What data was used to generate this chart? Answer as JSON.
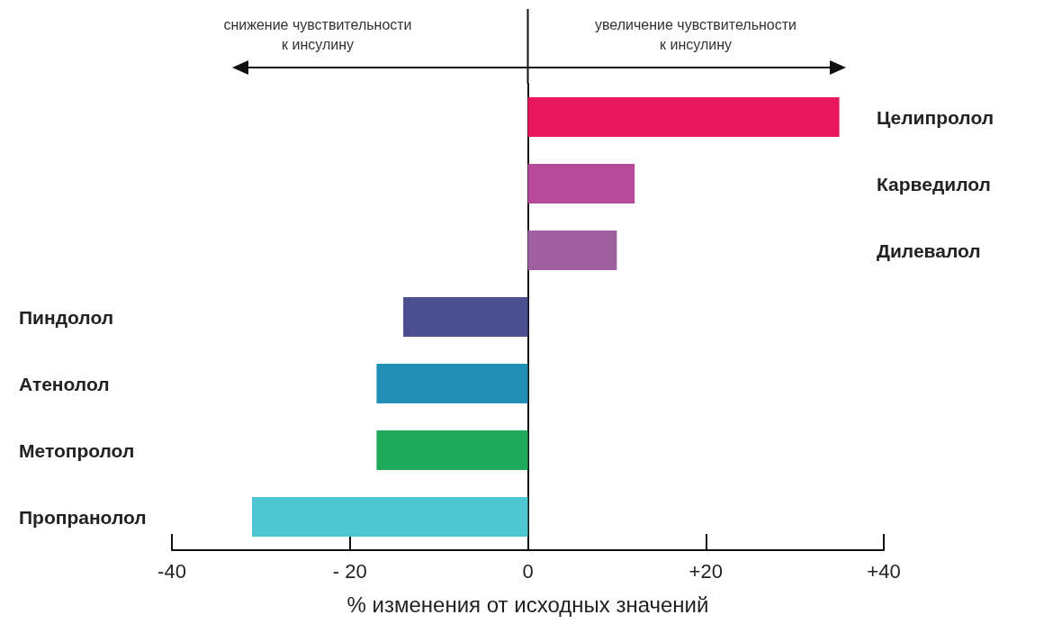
{
  "chart_data": {
    "type": "bar",
    "orientation": "horizontal",
    "categories": [
      "Целипролол",
      "Карведилол",
      "Дилевалол",
      "Пиндолол",
      "Атенолол",
      "Метопролол",
      "Пропранолол"
    ],
    "values": [
      35,
      12,
      10,
      -14,
      -17,
      -17,
      -31
    ],
    "colors": [
      "#e8175d",
      "#b84a9a",
      "#a0609f",
      "#4b4e8f",
      "#1f8fb5",
      "#1faa5a",
      "#4dc8d0"
    ],
    "xlim": [
      -40,
      40
    ],
    "xticks": [
      {
        "value": -40,
        "label": "-40"
      },
      {
        "value": -20,
        "label": "- 20"
      },
      {
        "value": 0,
        "label": "0"
      },
      {
        "value": 20,
        "label": "+20"
      },
      {
        "value": 40,
        "label": "+40"
      }
    ],
    "xlabel": "% изменения от исходных значений",
    "annotations": [
      "снижение чувствительности к инсулину",
      "увеличение чувствительности к инсулину"
    ]
  }
}
